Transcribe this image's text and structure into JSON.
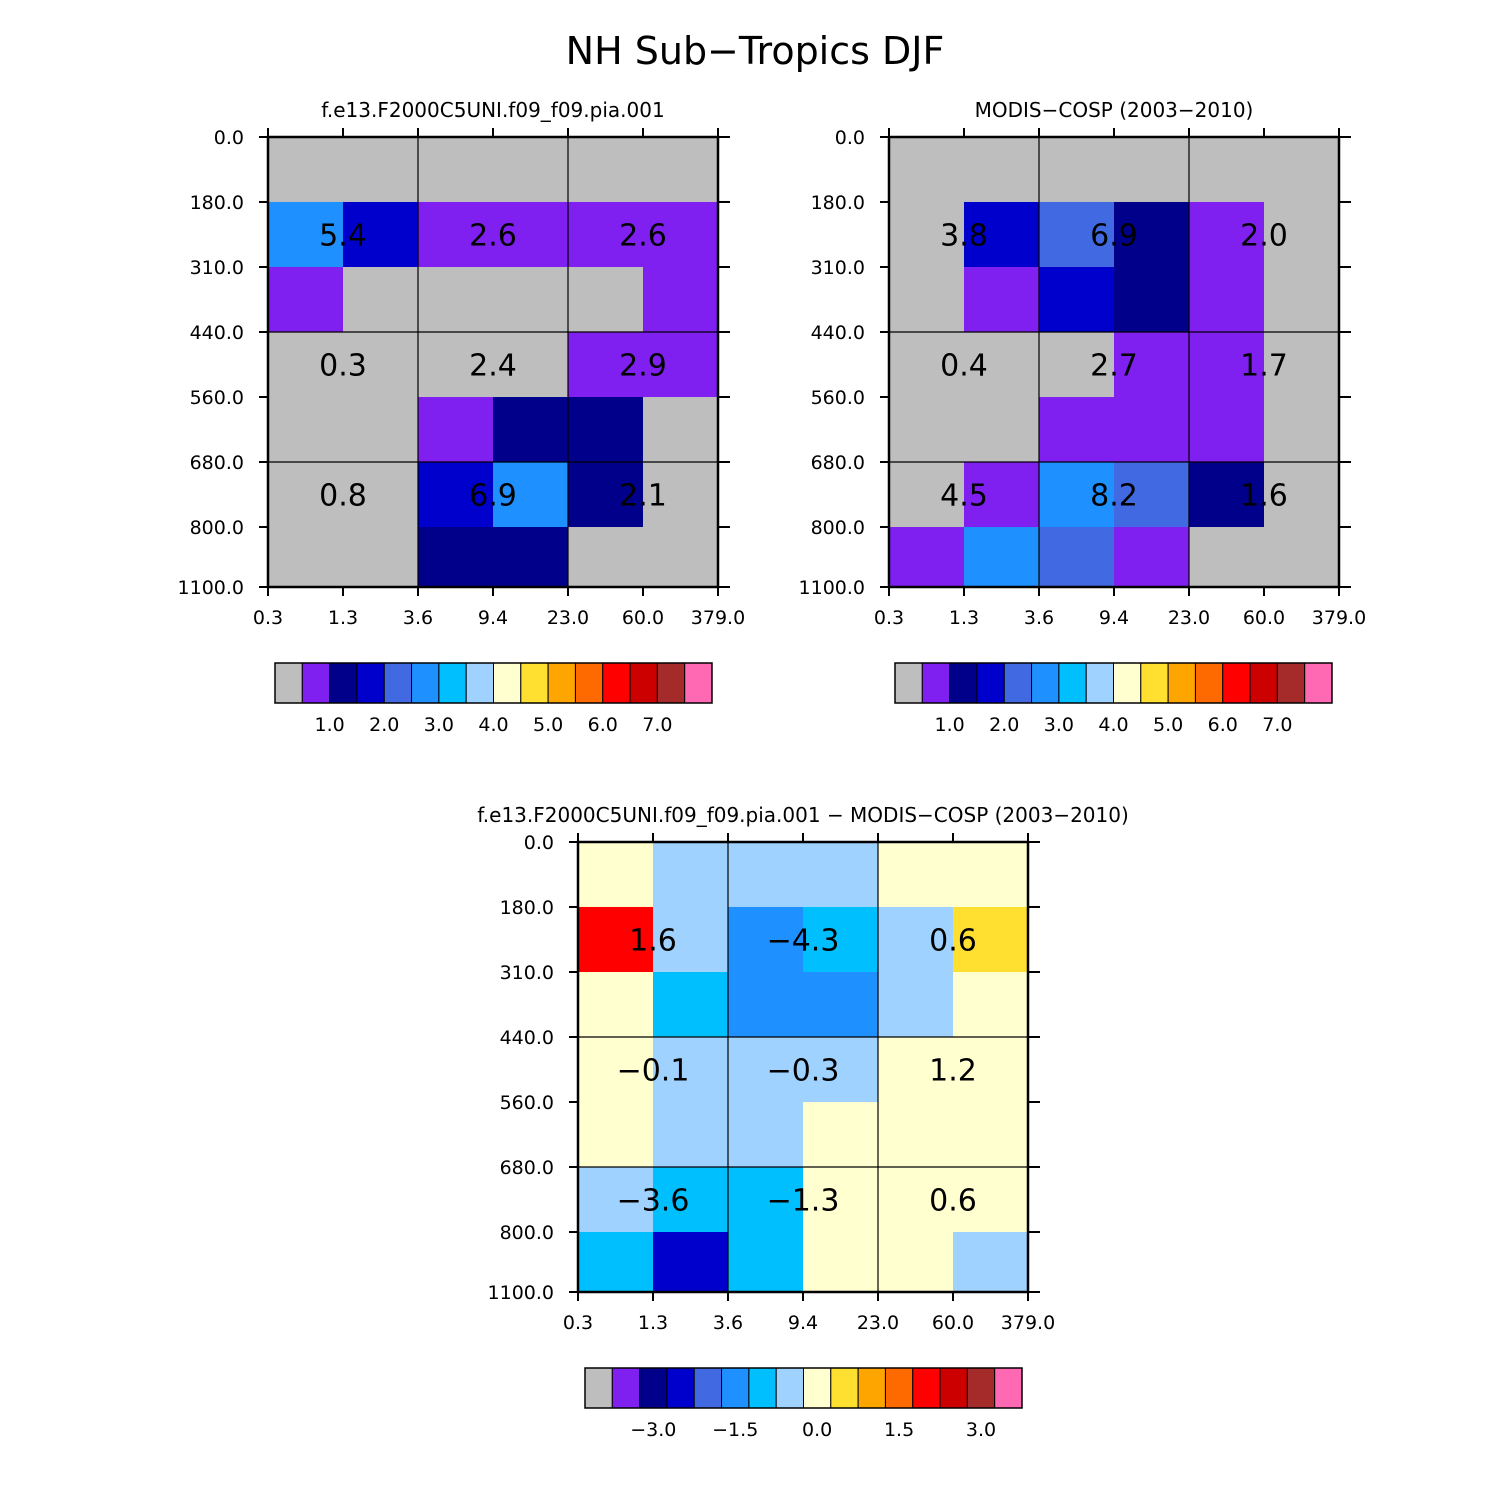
{
  "figure_title": "NH Sub−Tropics DJF",
  "colors": {
    "background": "#ffffff",
    "grid": "#000000",
    "missing": "#bebebe"
  },
  "chart_data": [
    {
      "type": "heatmap",
      "id": "model",
      "title": "f.e13.F2000C5UNI.f09_f09.pia.001",
      "x_ticks": [
        "0.3",
        "1.3",
        "3.6",
        "9.4",
        "23.0",
        "60.0",
        "379.0"
      ],
      "y_ticks": [
        "0.0",
        "180.0",
        "310.0",
        "440.0",
        "560.0",
        "680.0",
        "800.0",
        "1100.0"
      ],
      "xlabel": "",
      "ylabel": "",
      "cell_colors": [
        [
          "#bebebe",
          "#bebebe",
          "#bebebe",
          "#bebebe",
          "#bebebe",
          "#bebebe"
        ],
        [
          "#1e90ff",
          "#0000cd",
          "#8020f0",
          "#8020f0",
          "#8020f0",
          "#8020f0"
        ],
        [
          "#8020f0",
          "#bebebe",
          "#bebebe",
          "#bebebe",
          "#bebebe",
          "#8020f0"
        ],
        [
          "#bebebe",
          "#bebebe",
          "#bebebe",
          "#bebebe",
          "#8020f0",
          "#8020f0"
        ],
        [
          "#bebebe",
          "#bebebe",
          "#8020f0",
          "#00008b",
          "#00008b",
          "#bebebe"
        ],
        [
          "#bebebe",
          "#bebebe",
          "#0000cd",
          "#1e90ff",
          "#00008b",
          "#bebebe"
        ],
        [
          "#bebebe",
          "#bebebe",
          "#00008b",
          "#00008b",
          "#bebebe",
          "#bebebe"
        ]
      ],
      "block_labels": [
        [
          "5.4",
          "2.6",
          "2.6"
        ],
        [
          "0.3",
          "2.4",
          "2.9"
        ],
        [
          "0.8",
          "6.9",
          "2.1"
        ]
      ],
      "colorbar": {
        "colors": [
          "#bebebe",
          "#8020f0",
          "#00008b",
          "#0000cd",
          "#4169e1",
          "#1e90ff",
          "#00bfff",
          "#a0d2ff",
          "#ffffd0",
          "#ffe030",
          "#ffa500",
          "#ff6a00",
          "#ff0000",
          "#cd0000",
          "#a52a2a",
          "#ff69b4"
        ],
        "labels": [
          "1.0",
          "2.0",
          "3.0",
          "4.0",
          "5.0",
          "6.0",
          "7.0"
        ],
        "label_boundary_index": [
          2,
          4,
          6,
          8,
          10,
          12,
          14
        ]
      }
    },
    {
      "type": "heatmap",
      "id": "obs",
      "title": "MODIS−COSP (2003−2010)",
      "x_ticks": [
        "0.3",
        "1.3",
        "3.6",
        "9.4",
        "23.0",
        "60.0",
        "379.0"
      ],
      "y_ticks": [
        "0.0",
        "180.0",
        "310.0",
        "440.0",
        "560.0",
        "680.0",
        "800.0",
        "1100.0"
      ],
      "xlabel": "",
      "ylabel": "",
      "cell_colors": [
        [
          "#bebebe",
          "#bebebe",
          "#bebebe",
          "#bebebe",
          "#bebebe",
          "#bebebe"
        ],
        [
          "#bebebe",
          "#0000cd",
          "#4169e1",
          "#00008b",
          "#8020f0",
          "#bebebe"
        ],
        [
          "#bebebe",
          "#8020f0",
          "#0000cd",
          "#00008b",
          "#8020f0",
          "#bebebe"
        ],
        [
          "#bebebe",
          "#bebebe",
          "#bebebe",
          "#8020f0",
          "#8020f0",
          "#bebebe"
        ],
        [
          "#bebebe",
          "#bebebe",
          "#8020f0",
          "#8020f0",
          "#8020f0",
          "#bebebe"
        ],
        [
          "#bebebe",
          "#8020f0",
          "#1e90ff",
          "#4169e1",
          "#00008b",
          "#bebebe"
        ],
        [
          "#8020f0",
          "#1e90ff",
          "#4169e1",
          "#8020f0",
          "#bebebe",
          "#bebebe"
        ]
      ],
      "block_labels": [
        [
          "3.8",
          "6.9",
          "2.0"
        ],
        [
          "0.4",
          "2.7",
          "1.7"
        ],
        [
          "4.5",
          "8.2",
          "1.6"
        ]
      ],
      "colorbar": {
        "colors": [
          "#bebebe",
          "#8020f0",
          "#00008b",
          "#0000cd",
          "#4169e1",
          "#1e90ff",
          "#00bfff",
          "#a0d2ff",
          "#ffffd0",
          "#ffe030",
          "#ffa500",
          "#ff6a00",
          "#ff0000",
          "#cd0000",
          "#a52a2a",
          "#ff69b4"
        ],
        "labels": [
          "1.0",
          "2.0",
          "3.0",
          "4.0",
          "5.0",
          "6.0",
          "7.0"
        ],
        "label_boundary_index": [
          2,
          4,
          6,
          8,
          10,
          12,
          14
        ]
      }
    },
    {
      "type": "heatmap",
      "id": "diff",
      "title": "f.e13.F2000C5UNI.f09_f09.pia.001 − MODIS−COSP (2003−2010)",
      "x_ticks": [
        "0.3",
        "1.3",
        "3.6",
        "9.4",
        "23.0",
        "60.0",
        "379.0"
      ],
      "y_ticks": [
        "0.0",
        "180.0",
        "310.0",
        "440.0",
        "560.0",
        "680.0",
        "800.0",
        "1100.0"
      ],
      "xlabel": "",
      "ylabel": "",
      "cell_colors": [
        [
          "#ffffd0",
          "#a0d2ff",
          "#a0d2ff",
          "#a0d2ff",
          "#ffffd0",
          "#ffffd0"
        ],
        [
          "#ff0000",
          "#a0d2ff",
          "#1e90ff",
          "#00bfff",
          "#a0d2ff",
          "#ffe030"
        ],
        [
          "#ffffd0",
          "#00bfff",
          "#1e90ff",
          "#1e90ff",
          "#a0d2ff",
          "#ffffd0"
        ],
        [
          "#ffffd0",
          "#a0d2ff",
          "#a0d2ff",
          "#a0d2ff",
          "#ffffd0",
          "#ffffd0"
        ],
        [
          "#ffffd0",
          "#a0d2ff",
          "#a0d2ff",
          "#ffffd0",
          "#ffffd0",
          "#ffffd0"
        ],
        [
          "#a0d2ff",
          "#00bfff",
          "#00bfff",
          "#ffffd0",
          "#ffffd0",
          "#ffffd0"
        ],
        [
          "#00bfff",
          "#0000cd",
          "#00bfff",
          "#ffffd0",
          "#ffffd0",
          "#a0d2ff"
        ]
      ],
      "block_labels": [
        [
          "1.6",
          "−4.3",
          "0.6"
        ],
        [
          "−0.1",
          "−0.3",
          "1.2"
        ],
        [
          "−3.6",
          "−1.3",
          "0.6"
        ]
      ],
      "colorbar": {
        "colors": [
          "#bebebe",
          "#8020f0",
          "#00008b",
          "#0000cd",
          "#4169e1",
          "#1e90ff",
          "#00bfff",
          "#a0d2ff",
          "#ffffd0",
          "#ffe030",
          "#ffa500",
          "#ff6a00",
          "#ff0000",
          "#cd0000",
          "#a52a2a",
          "#ff69b4"
        ],
        "labels": [
          "−3.0",
          "−1.5",
          "0.0",
          "1.5",
          "3.0"
        ],
        "label_boundary_index": [
          2.5,
          5.5,
          8.5,
          11.5,
          14.5
        ]
      }
    }
  ]
}
